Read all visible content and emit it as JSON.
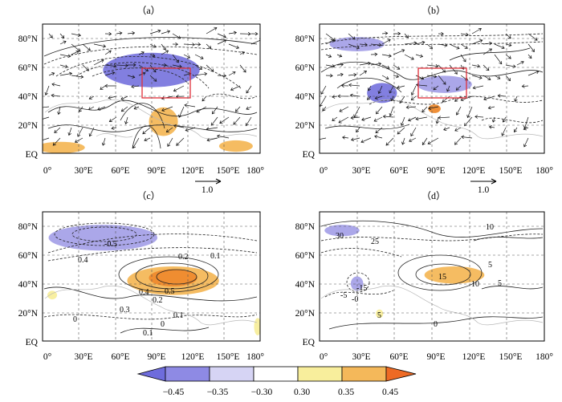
{
  "figure": {
    "colors": {
      "neg_strong": "#7b78de",
      "neg_mid": "#a6a2e8",
      "neg_light": "#d6d4f4",
      "pos_light": "#f8ee9c",
      "pos_mid": "#f4b85a",
      "pos_strong": "#ee8a2e",
      "box": "#e0303a",
      "grid": "#555555"
    }
  },
  "chart_data": [
    {
      "type": "contour",
      "panel_label": "（a）",
      "x_ticks": [
        "0°",
        "30°E",
        "60°E",
        "90°E",
        "120°E",
        "150°E",
        "180°"
      ],
      "y_ticks": [
        "80°N",
        "60°N",
        "40°N",
        "20°N",
        "EQ"
      ],
      "xlim": [
        0,
        180
      ],
      "ylim": [
        0,
        90
      ],
      "region_box": {
        "lon": [
          80,
          120
        ],
        "lat": [
          40,
          60
        ]
      },
      "vector_reference": "1.0",
      "shading": [
        {
          "lon": 90,
          "lat": 58,
          "rx": 40,
          "ry": 12,
          "value": -0.45
        },
        {
          "lon": 100,
          "lat": 22,
          "rx": 12,
          "ry": 10,
          "value": 0.35
        },
        {
          "lon": 15,
          "lat": 4,
          "rx": 20,
          "ry": 4,
          "value": 0.35
        },
        {
          "lon": 160,
          "lat": 5,
          "rx": 14,
          "ry": 4,
          "value": 0.35
        }
      ]
    },
    {
      "type": "contour",
      "panel_label": "（b）",
      "x_ticks": [
        "0°",
        "30°E",
        "60°E",
        "90°E",
        "120°E",
        "150°E",
        "180°"
      ],
      "y_ticks": [
        "80°N",
        "60°N",
        "40°N",
        "20°N",
        "EQ"
      ],
      "xlim": [
        0,
        180
      ],
      "ylim": [
        0,
        90
      ],
      "region_box": {
        "lon": [
          80,
          120
        ],
        "lat": [
          40,
          60
        ]
      },
      "vector_reference": "1.0",
      "shading": [
        {
          "lon": 30,
          "lat": 76,
          "rx": 22,
          "ry": 5,
          "value": -0.35
        },
        {
          "lon": 50,
          "lat": 42,
          "rx": 12,
          "ry": 7,
          "value": -0.45
        },
        {
          "lon": 100,
          "lat": 48,
          "rx": 22,
          "ry": 6,
          "value": -0.35
        },
        {
          "lon": 92,
          "lat": 31,
          "rx": 5,
          "ry": 3,
          "value": 0.45
        }
      ]
    },
    {
      "type": "contour",
      "panel_label": "（c）",
      "x_ticks": [
        "0°",
        "30°E",
        "60°E",
        "90°E",
        "120°E",
        "150°E",
        "180°"
      ],
      "y_ticks": [
        "80°N",
        "60°N",
        "40°N",
        "20°N",
        "EQ"
      ],
      "xlim": [
        0,
        180
      ],
      "ylim": [
        0,
        90
      ],
      "contour_labels": [
        "-0.5",
        "0.4",
        "0.2",
        "0.1",
        "0.5",
        "0.4",
        "0.2",
        "0.3",
        "0",
        "0",
        "0.1",
        "0.1"
      ],
      "shading": [
        {
          "lon": 50,
          "lat": 72,
          "rx": 45,
          "ry": 9,
          "value": -0.35
        },
        {
          "lon": 108,
          "lat": 42,
          "rx": 38,
          "ry": 10,
          "value": 0.35
        },
        {
          "lon": 108,
          "lat": 44,
          "rx": 20,
          "ry": 6,
          "value": 0.45
        },
        {
          "lon": 8,
          "lat": 32,
          "rx": 4,
          "ry": 3,
          "value": 0.3
        },
        {
          "lon": 178,
          "lat": 10,
          "rx": 3,
          "ry": 6,
          "value": 0.3
        }
      ]
    },
    {
      "type": "contour",
      "panel_label": "（d）",
      "x_ticks": [
        "0°",
        "30°E",
        "60°E",
        "90°E",
        "120°E",
        "150°E",
        "180°"
      ],
      "y_ticks": [
        "80°N",
        "60°N",
        "40°N",
        "20°N",
        "EQ"
      ],
      "xlim": [
        0,
        180
      ],
      "ylim": [
        0,
        90
      ],
      "contour_labels": [
        "30",
        "25",
        "10",
        "-15",
        "5",
        "-5",
        "-0",
        "15",
        "5",
        "10",
        "5",
        "0"
      ],
      "shading": [
        {
          "lon": 18,
          "lat": 77,
          "rx": 14,
          "ry": 4,
          "value": -0.35
        },
        {
          "lon": 30,
          "lat": 40,
          "rx": 5,
          "ry": 5,
          "value": -0.35
        },
        {
          "lon": 108,
          "lat": 46,
          "rx": 24,
          "ry": 6,
          "value": 0.35
        },
        {
          "lon": 48,
          "lat": 19,
          "rx": 3,
          "ry": 3,
          "value": 0.3
        }
      ]
    }
  ],
  "colorbar": {
    "ticks": [
      "−0.45",
      "−0.35",
      "−0.30",
      "0.30",
      "0.35",
      "0.45"
    ]
  }
}
